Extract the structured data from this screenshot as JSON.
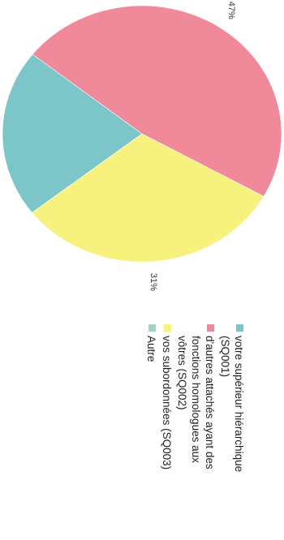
{
  "chart_data": {
    "type": "pie",
    "title": "",
    "slices": [
      {
        "label": "votre supérieur hiérarchique (SQ001)",
        "value": 21,
        "display": "21%",
        "color": "#7cc5c8"
      },
      {
        "label": "d'autres attachés ayant des fonctions homologues aux vôtres (SQ002)",
        "value": 47,
        "display": "47%",
        "color": "#f08a9a"
      },
      {
        "label": "vos subordonnées (SQ003)",
        "value": 31,
        "display": "31%",
        "color": "#f7f27e"
      },
      {
        "label": "Autre",
        "value": 0,
        "display": "",
        "color": "#9fd3c8"
      }
    ],
    "legend": {
      "placement": "bottom",
      "lines": [
        [
          "votre supérieur hiérarchique",
          "(SQ001)"
        ],
        [
          "d'autres attachés ayant des",
          "fonctions homologues aux",
          "vôtres (SQ002)"
        ],
        [
          "vos subordonnées (SQ003)"
        ],
        [
          "Autre"
        ]
      ]
    },
    "orientation": "rotated 90° clockwise"
  }
}
